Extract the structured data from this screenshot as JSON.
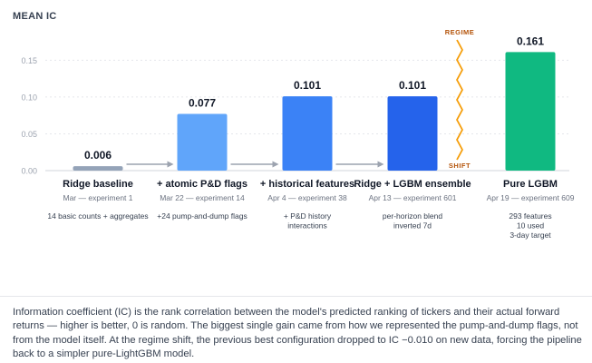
{
  "chart_data": {
    "type": "bar",
    "title": "MEAN IC",
    "ylim": [
      0,
      0.18
    ],
    "yticks": [
      "0.00",
      "0.05",
      "0.10",
      "0.15"
    ],
    "ytick_values": [
      0,
      0.05,
      0.1,
      0.15
    ],
    "grid": true,
    "categories": [
      "Ridge baseline",
      "+ atomic P&D flags",
      "+ historical features",
      "Ridge + LGBM ensemble",
      "Pure LGBM"
    ],
    "values": [
      0.006,
      0.077,
      0.101,
      0.101,
      0.161
    ],
    "value_labels": [
      "0.006",
      "0.077",
      "0.101",
      "0.101",
      "0.161"
    ],
    "dates": [
      "Mar — experiment 1",
      "Mar 22 — experiment 14",
      "Apr 4 — experiment 38",
      "Apr 13 — experiment 601",
      "Apr 19 — experiment 609"
    ],
    "notes": [
      [
        "14 basic counts + aggregates"
      ],
      [
        "+24 pump-and-dump flags"
      ],
      [
        "+ P&D history",
        "interactions"
      ],
      [
        "per-horizon blend",
        "inverted 7d"
      ],
      [
        "293 features",
        "10 used",
        "3-day target"
      ]
    ],
    "bar_colors": [
      "#94a3b8",
      "#60a5fa",
      "#3b82f6",
      "#2563eb",
      "#10b981"
    ],
    "regime_labels": {
      "top": "REGIME",
      "bottom": "SHIFT"
    },
    "regime_color": "#f59e0b",
    "regime_text_color": "#b45309"
  },
  "caption": "Information coefficient (IC) is the rank correlation between the model's predicted ranking of tickers and their actual forward returns — higher is better, 0 is random. The biggest single gain came from how we represented the pump-and-dump flags, not from the model itself. At the regime shift, the previous best configuration dropped to IC −0.010 on new data, forcing the pipeline back to a simpler pure-LightGBM model."
}
